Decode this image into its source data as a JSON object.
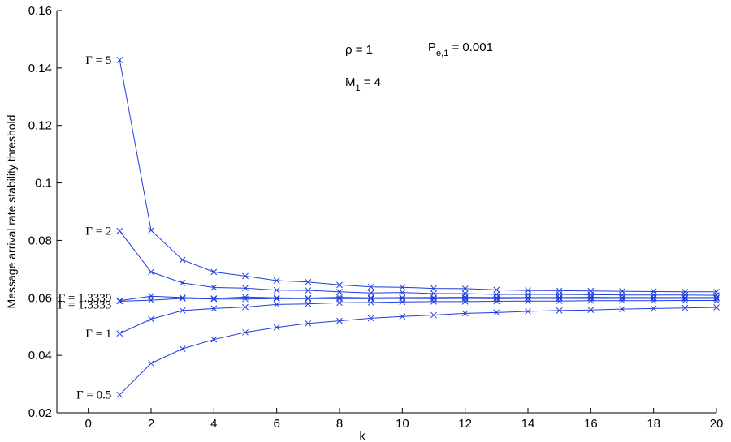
{
  "chart_data": {
    "type": "line",
    "xlabel": "k",
    "ylabel": "Message arrival rate stability threshold",
    "xlim": [
      -1,
      20
    ],
    "ylim": [
      0.02,
      0.16
    ],
    "xticks": [
      0,
      2,
      4,
      6,
      8,
      10,
      12,
      14,
      16,
      18,
      20
    ],
    "yticks": [
      0.02,
      0.04,
      0.06,
      0.08,
      0.1,
      0.12,
      0.14,
      0.16
    ],
    "ytick_labels": [
      "0.02",
      "0.04",
      "0.06",
      "0.08",
      "0.1",
      "0.12",
      "0.14",
      "0.16"
    ],
    "grid": false,
    "line_color": "#1f3de0",
    "marker": "x",
    "annotations": {
      "rho": "ρ = 1",
      "pe_main": "P",
      "pe_sub": "e,1",
      "pe_value": " = 0.001",
      "m_main": "M",
      "m_sub": "1",
      "m_value": " = 4"
    },
    "x": [
      1,
      2,
      3,
      4,
      5,
      6,
      7,
      8,
      9,
      10,
      11,
      12,
      13,
      14,
      15,
      16,
      17,
      18,
      19,
      20
    ],
    "series": [
      {
        "name": "Γ = 5",
        "label": "Γ = 5",
        "values": [
          0.1428,
          0.0835,
          0.0732,
          0.069,
          0.0676,
          0.066,
          0.0655,
          0.0645,
          0.0638,
          0.0637,
          0.0633,
          0.0632,
          0.0628,
          0.0626,
          0.0625,
          0.0624,
          0.0623,
          0.0622,
          0.0621,
          0.0621
        ]
      },
      {
        "name": "Γ = 2",
        "label": "Γ = 2",
        "values": [
          0.0833,
          0.069,
          0.0652,
          0.0636,
          0.0634,
          0.0627,
          0.0626,
          0.0621,
          0.0617,
          0.0619,
          0.0615,
          0.0615,
          0.0612,
          0.0612,
          0.0612,
          0.0611,
          0.061,
          0.061,
          0.061,
          0.0609
        ]
      },
      {
        "name": "Γ = 1.3339",
        "label": "Γ = 1.3339",
        "values": [
          0.059,
          0.0606,
          0.0601,
          0.0598,
          0.0603,
          0.06,
          0.0599,
          0.0602,
          0.06,
          0.0601,
          0.0601,
          0.0602,
          0.0601,
          0.0601,
          0.0601,
          0.0602,
          0.0601,
          0.0601,
          0.0601,
          0.0601
        ]
      },
      {
        "name": "Γ = 1.3333",
        "label": "Γ = 1.3333",
        "values": [
          0.0588,
          0.0592,
          0.0598,
          0.0596,
          0.0596,
          0.0597,
          0.0597,
          0.0597,
          0.0597,
          0.0598,
          0.0597,
          0.0598,
          0.0597,
          0.0598,
          0.0598,
          0.0598,
          0.0598,
          0.0598,
          0.0598,
          0.0598
        ]
      },
      {
        "name": "Γ = 1",
        "label": "Γ = 1",
        "values": [
          0.0476,
          0.0526,
          0.0556,
          0.0563,
          0.0568,
          0.0577,
          0.0579,
          0.0583,
          0.0584,
          0.0586,
          0.0587,
          0.0587,
          0.0588,
          0.0589,
          0.0589,
          0.059,
          0.059,
          0.059,
          0.0591,
          0.0591
        ]
      },
      {
        "name": "Γ = 0.5",
        "label": "Γ = 0.5",
        "values": [
          0.0263,
          0.0372,
          0.0423,
          0.0455,
          0.048,
          0.0497,
          0.0511,
          0.052,
          0.0529,
          0.0535,
          0.054,
          0.0546,
          0.0549,
          0.0553,
          0.0556,
          0.0558,
          0.0561,
          0.0563,
          0.0565,
          0.0567
        ]
      }
    ]
  }
}
